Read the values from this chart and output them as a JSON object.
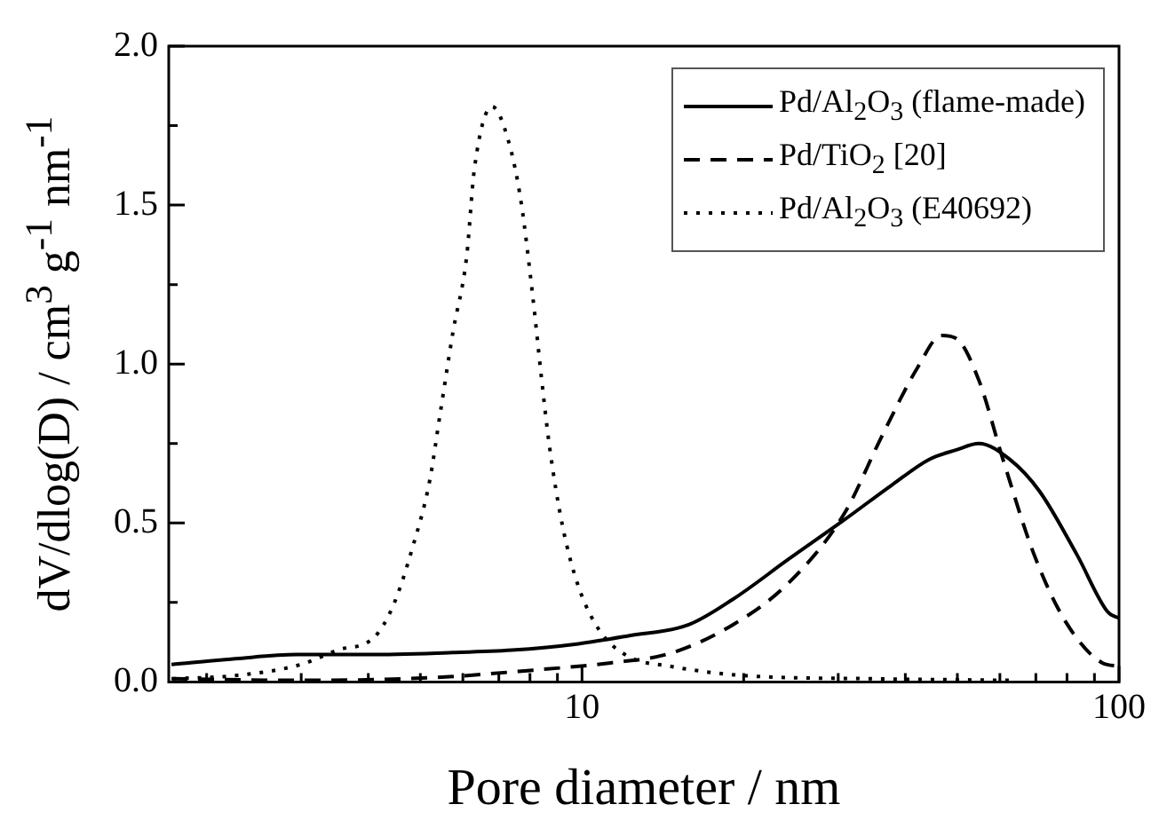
{
  "chart_data": {
    "type": "line",
    "xlabel": "Pore diameter / nm",
    "ylabel": "dV/dlog(D) / cm$^{3}$ g$^{-1}$ nm$^{-1}$",
    "log": "x",
    "xlim": [
      1.7,
      100
    ],
    "ylim": [
      0,
      2.0
    ],
    "xticks": [
      {
        "value": 2,
        "label": null
      },
      {
        "value": 3,
        "label": null
      },
      {
        "value": 4,
        "label": null
      },
      {
        "value": 5,
        "label": null
      },
      {
        "value": 6,
        "label": null
      },
      {
        "value": 7,
        "label": null
      },
      {
        "value": 8,
        "label": null
      },
      {
        "value": 9,
        "label": null
      },
      10,
      {
        "value": 20,
        "label": null
      },
      {
        "value": 30,
        "label": null
      },
      {
        "value": 40,
        "label": null
      },
      {
        "value": 50,
        "label": null
      },
      {
        "value": 60,
        "label": null
      },
      {
        "value": 70,
        "label": null
      },
      {
        "value": 80,
        "label": null
      },
      {
        "value": 90,
        "label": null
      },
      100
    ],
    "yticks": [
      {
        "value": 0,
        "label": "0.0"
      },
      {
        "value": 0.25,
        "label": null
      },
      {
        "value": 0.5,
        "label": "0.5"
      },
      {
        "value": 0.75,
        "label": null
      },
      {
        "value": 1,
        "label": "1.0"
      },
      {
        "value": 1.25,
        "label": null
      },
      {
        "value": 1.5,
        "label": "1.5"
      },
      {
        "value": 1.75,
        "label": null
      },
      {
        "value": 2,
        "label": "2.0"
      }
    ],
    "grid": false,
    "legend": "top right",
    "marker": "none",
    "series": [
      {
        "name": "Pd/Al$_{2}$O$_{3}$ (flame-made)",
        "color": "#000000",
        "line_style": "solid",
        "x": [
          1.72,
          2.26,
          2.94,
          4.0,
          5.65,
          7.4,
          9.85,
          12.2,
          15.8,
          19.1,
          24.2,
          30.8,
          37.8,
          44.3,
          49.8,
          54.8,
          62.6,
          71.1,
          83.5,
          95.3,
          100
        ],
        "values": [
          0.055,
          0.073,
          0.086,
          0.086,
          0.092,
          0.1,
          0.12,
          0.145,
          0.18,
          0.26,
          0.385,
          0.51,
          0.62,
          0.7,
          0.73,
          0.75,
          0.7,
          0.6,
          0.4,
          0.22,
          0.2
        ]
      },
      {
        "name": "Pd/TiO$_{2}$ [20]",
        "color": "#000000",
        "line_style": "dashed",
        "x": [
          1.72,
          2.94,
          5.2,
          8.1,
          11.3,
          14.6,
          19.1,
          24.2,
          30.8,
          36.1,
          42.2,
          46.7,
          49.8,
          54.8,
          60.8,
          69.5,
          79.5,
          93.1,
          100
        ],
        "values": [
          0.01,
          0.005,
          0.013,
          0.037,
          0.06,
          0.09,
          0.18,
          0.31,
          0.53,
          0.77,
          0.99,
          1.09,
          1.08,
          0.95,
          0.7,
          0.4,
          0.19,
          0.06,
          0.05
        ]
      },
      {
        "name": "Pd/Al$_{2}$O$_{3}$ (E40692)",
        "color": "#000000",
        "line_style": "dotted",
        "x": [
          1.73,
          2.26,
          3.0,
          3.5,
          4.1,
          4.45,
          4.83,
          5.2,
          5.45,
          5.75,
          6.1,
          6.3,
          6.8,
          7.3,
          7.7,
          8.1,
          8.4,
          8.7,
          9.2,
          9.85,
          10.8,
          12.2,
          14.5,
          20,
          35,
          63
        ],
        "values": [
          0.01,
          0.02,
          0.055,
          0.1,
          0.14,
          0.24,
          0.42,
          0.63,
          0.85,
          1.1,
          1.34,
          1.61,
          1.81,
          1.7,
          1.51,
          1.21,
          0.96,
          0.74,
          0.49,
          0.3,
          0.16,
          0.08,
          0.05,
          0.02,
          0.01,
          0.005
        ]
      }
    ]
  }
}
